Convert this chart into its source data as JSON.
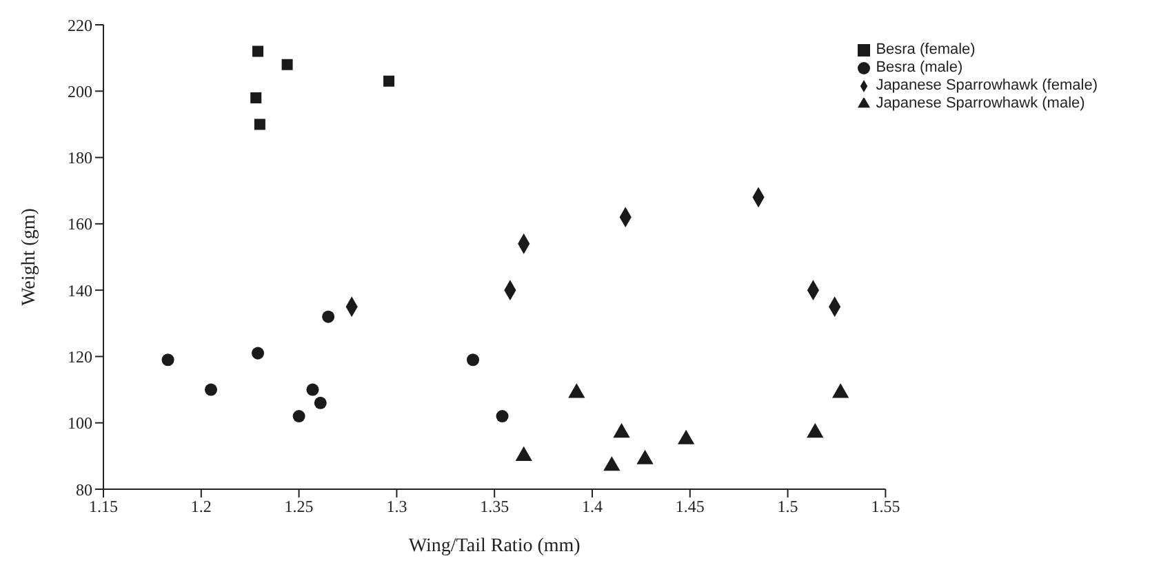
{
  "chart_data": {
    "type": "scatter",
    "xlabel": "Wing/Tail Ratio (mm)",
    "ylabel": "Weight (gm)",
    "xlim": [
      1.15,
      1.55
    ],
    "xticks": [
      1.15,
      1.2,
      1.25,
      1.3,
      1.35,
      1.4,
      1.45,
      1.5,
      1.55
    ],
    "ylim": [
      80,
      220
    ],
    "yticks": [
      80,
      100,
      120,
      140,
      160,
      180,
      200,
      220
    ],
    "grid": false,
    "legend": "top right",
    "series": [
      {
        "name": "Besra (female)",
        "color": "#1a1a1a",
        "marker": "square",
        "x": [
          1.229,
          1.244,
          1.296,
          1.228,
          1.23
        ],
        "values": [
          212,
          208,
          203,
          198,
          190
        ]
      },
      {
        "name": "Besra (male)",
        "color": "#1a1a1a",
        "marker": "circle",
        "x": [
          1.183,
          1.205,
          1.229,
          1.25,
          1.257,
          1.261,
          1.265,
          1.339,
          1.354
        ],
        "values": [
          119,
          110,
          121,
          102,
          110,
          106,
          132,
          119,
          102
        ]
      },
      {
        "name": "Japanese Sparrowhawk (female)",
        "color": "#1a1a1a",
        "marker": "diamond",
        "x": [
          1.277,
          1.365,
          1.358,
          1.417,
          1.485,
          1.513,
          1.524
        ],
        "values": [
          135,
          154,
          140,
          162,
          168,
          140,
          135
        ]
      },
      {
        "name": "Japanese Sparrowhawk (male)",
        "color": "#1a1a1a",
        "marker": "triangle",
        "x": [
          1.392,
          1.365,
          1.415,
          1.41,
          1.427,
          1.448,
          1.514,
          1.527
        ],
        "values": [
          109,
          90,
          97,
          87,
          89,
          95,
          97,
          109
        ]
      }
    ]
  }
}
